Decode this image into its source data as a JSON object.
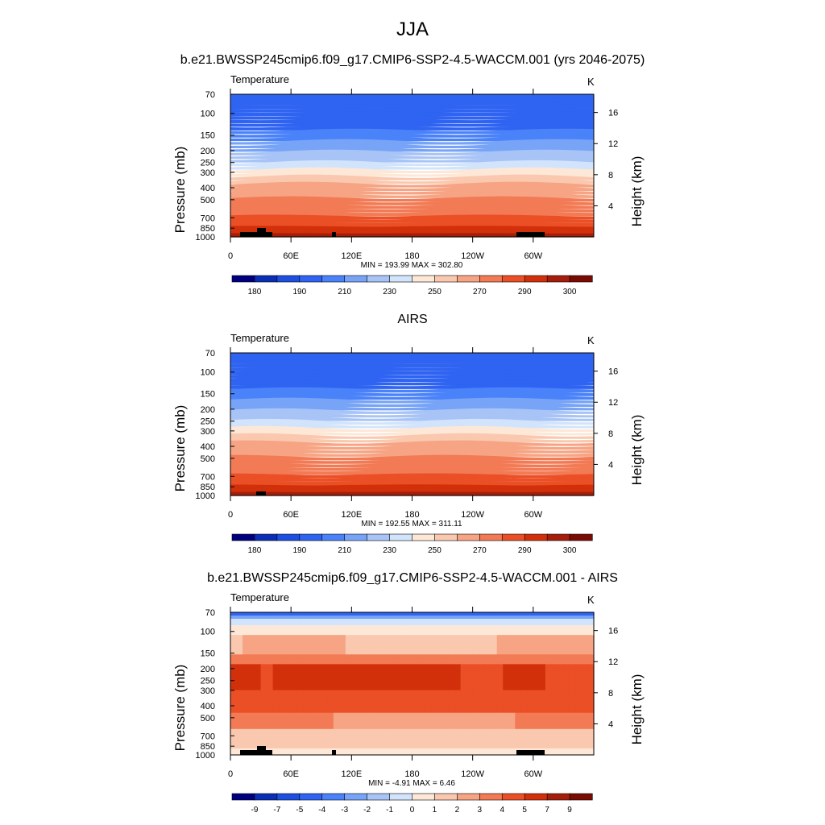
{
  "page_title": "JJA",
  "chart_data": [
    {
      "type": "heatmap",
      "title": "b.e21.BWSSP245cmip6.f09_g17.CMIP6-SSP2-4.5-WACCM.001 (yrs 2046-2075)",
      "left_label": "Temperature",
      "units": "K",
      "ylabel": "Pressure (mb)",
      "y2label": "Height (km)",
      "pressure_ticks": [
        "70",
        "100",
        "150",
        "200",
        "250",
        "300",
        "400",
        "500",
        "700",
        "850",
        "1000"
      ],
      "height_ticks": [
        "16",
        "12",
        "8",
        "4"
      ],
      "longitude_ticks": [
        "0",
        "60E",
        "120E",
        "180",
        "120W",
        "60W"
      ],
      "stats": "MIN = 193.99  MAX = 302.80",
      "min": 193.99,
      "max": 302.8,
      "colorbar_labels": [
        "180",
        "190",
        "210",
        "230",
        "250",
        "270",
        "290",
        "300"
      ]
    },
    {
      "type": "heatmap",
      "title": "AIRS",
      "left_label": "Temperature",
      "units": "K",
      "ylabel": "Pressure (mb)",
      "y2label": "Height (km)",
      "pressure_ticks": [
        "70",
        "100",
        "150",
        "200",
        "250",
        "300",
        "400",
        "500",
        "700",
        "850",
        "1000"
      ],
      "height_ticks": [
        "16",
        "12",
        "8",
        "4"
      ],
      "longitude_ticks": [
        "0",
        "60E",
        "120E",
        "180",
        "120W",
        "60W"
      ],
      "stats": "MIN = 192.55  MAX = 311.11",
      "min": 192.55,
      "max": 311.11,
      "colorbar_labels": [
        "180",
        "190",
        "210",
        "230",
        "250",
        "270",
        "290",
        "300"
      ]
    },
    {
      "type": "heatmap",
      "title": "b.e21.BWSSP245cmip6.f09_g17.CMIP6-SSP2-4.5-WACCM.001 - AIRS",
      "left_label": "Temperature",
      "units": "K",
      "ylabel": "Pressure (mb)",
      "y2label": "Height (km)",
      "pressure_ticks": [
        "70",
        "100",
        "150",
        "200",
        "250",
        "300",
        "400",
        "500",
        "700",
        "850",
        "1000"
      ],
      "height_ticks": [
        "16",
        "12",
        "8",
        "4"
      ],
      "longitude_ticks": [
        "0",
        "60E",
        "120E",
        "180",
        "120W",
        "60W"
      ],
      "stats": "MIN =  -4.91  MAX =   6.46",
      "min": -4.91,
      "max": 6.46,
      "colorbar_labels": [
        "-9",
        "-7",
        "-5",
        "-4",
        "-3",
        "-2",
        "-1",
        "0",
        "1",
        "2",
        "3",
        "4",
        "5",
        "7",
        "9"
      ]
    }
  ],
  "colormap": [
    "#00007e",
    "#0a2eb4",
    "#1d4fe0",
    "#2f63f1",
    "#4a82fa",
    "#78a4f7",
    "#a8c4f7",
    "#d2e4fb",
    "#fde8d8",
    "#fac8af",
    "#f6a483",
    "#f27a55",
    "#eb4f26",
    "#d2300b",
    "#a51e0b",
    "#7a0a04"
  ]
}
